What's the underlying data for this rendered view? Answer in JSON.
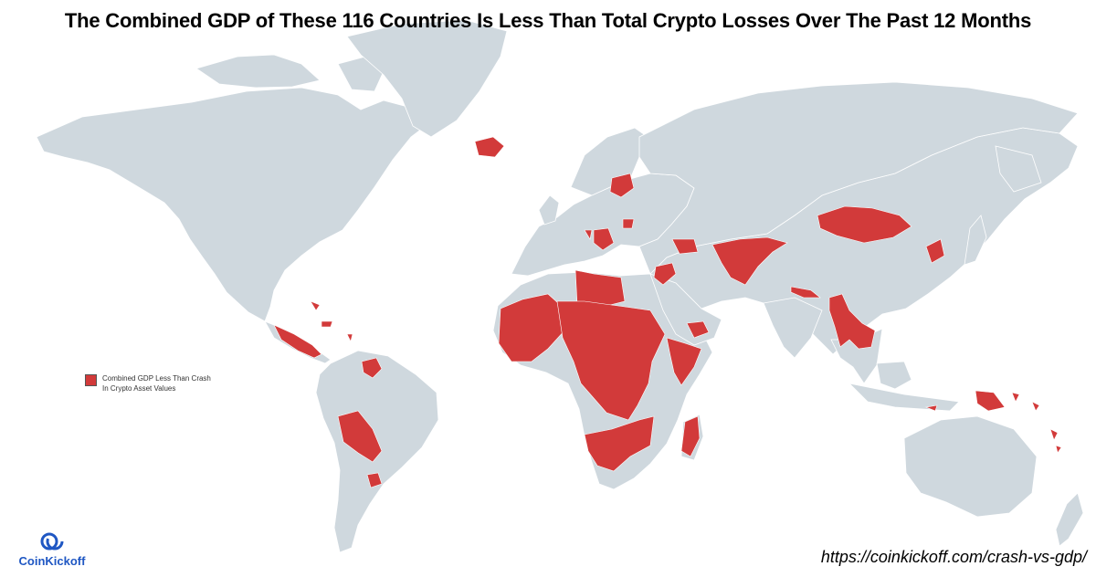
{
  "title": "The Combined GDP of These 116 Countries Is Less Than Total Crypto Losses Over The Past 12 Months",
  "legend": {
    "label_line1": "Combined GDP Less Than Crash",
    "label_line2": "In Crypto Asset Values"
  },
  "brand": {
    "name": "CoinKickoff"
  },
  "source_url": "https://coinkickoff.com/crash-vs-gdp/",
  "colors": {
    "land": "#cfd8de",
    "highlight": "#d23a3a",
    "border": "#ffffff",
    "brand": "#1f57c3"
  },
  "map": {
    "projection": "Robinson-style world map",
    "highlighted_regions": [
      "Central America",
      "Caribbean islands",
      "Guyana & Suriname",
      "Bolivia & Paraguay",
      "Uruguay",
      "Iceland",
      "Lithuania & Belarus area",
      "Balkans",
      "Moldova",
      "Caucasus",
      "Lebanon & Jordan",
      "Central Asia & Afghanistan",
      "Mongolia",
      "North Korea",
      "Nepal & Bhutan",
      "Myanmar, Laos & Cambodia",
      "Sahel & West Africa",
      "Libya",
      "Central Africa",
      "Horn of Africa",
      "Yemen",
      "Southern Africa",
      "Madagascar",
      "Papua New Guinea",
      "Pacific islands",
      "Timor-Leste"
    ]
  }
}
